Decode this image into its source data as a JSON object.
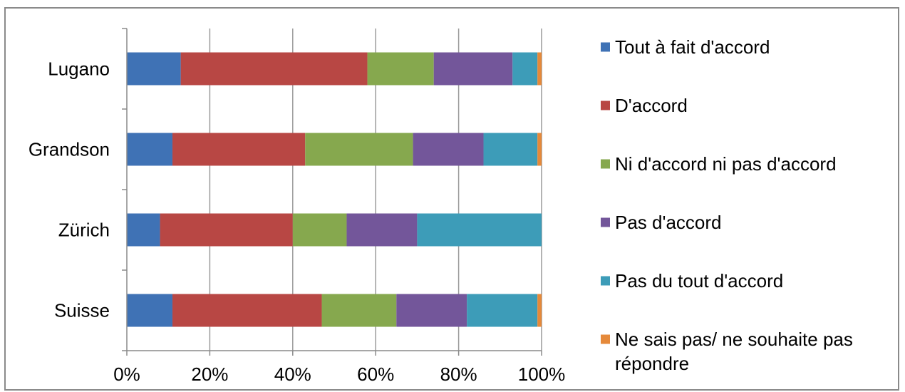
{
  "chart_data": {
    "type": "bar",
    "orientation": "horizontal",
    "stacked": "percent",
    "categories": [
      "Lugano",
      "Grandson",
      "Zürich",
      "Suisse"
    ],
    "series": [
      {
        "name": "Tout à fait d'accord",
        "color": "#3f72b5",
        "values": [
          13,
          11,
          8,
          11
        ]
      },
      {
        "name": "D'accord",
        "color": "#b84744",
        "values": [
          45,
          32,
          32,
          36
        ]
      },
      {
        "name": "Ni d'accord ni pas d'accord",
        "color": "#86a84e",
        "values": [
          16,
          26,
          13,
          18
        ]
      },
      {
        "name": "Pas d'accord",
        "color": "#73569a",
        "values": [
          19,
          17,
          17,
          17
        ]
      },
      {
        "name": "Pas du tout d'accord",
        "color": "#3d9cb8",
        "values": [
          6,
          13,
          30,
          17
        ]
      },
      {
        "name": "Ne sais pas/ ne souhaite pas répondre",
        "color": "#e5893a",
        "values": [
          1,
          1,
          0,
          1
        ]
      }
    ],
    "x_ticks": [
      "0%",
      "20%",
      "40%",
      "60%",
      "80%",
      "100%"
    ],
    "xlim": [
      0,
      100
    ],
    "grid": "vertical",
    "legend": "right",
    "title": "",
    "xlabel": "",
    "ylabel": ""
  }
}
